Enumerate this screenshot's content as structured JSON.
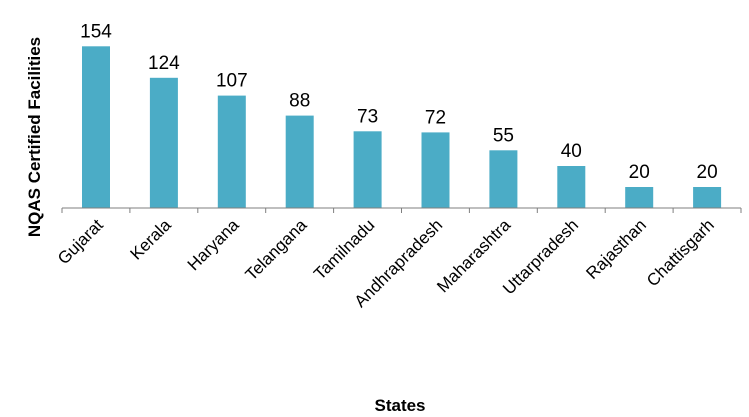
{
  "chart_data": {
    "type": "bar",
    "categories": [
      "Gujarat",
      "Kerala",
      "Haryana",
      "Telangana",
      "Tamilnadu",
      "Andhrapradesh",
      "Maharashtra",
      "Uttarpradesh",
      "Rajasthan",
      "Chattisgarh"
    ],
    "values": [
      154,
      124,
      107,
      88,
      73,
      72,
      55,
      40,
      20,
      20
    ],
    "data_labels": [
      "154",
      "124",
      "107",
      "88",
      "73",
      "72",
      "55",
      "40",
      "20",
      "20"
    ],
    "title": "",
    "xlabel": "States",
    "ylabel": "NQAS Certified Facilities",
    "ylim": [
      0,
      160
    ],
    "grid": false,
    "legend": "none",
    "bar_color": "#4bacc6"
  }
}
